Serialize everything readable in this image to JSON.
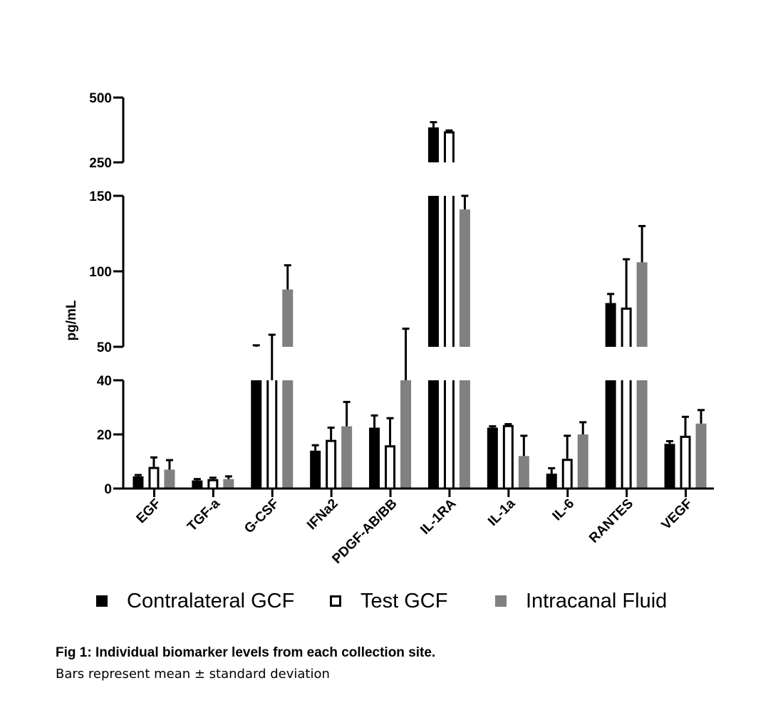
{
  "chart_data": {
    "type": "bar",
    "ylabel": "pg/mL",
    "categories": [
      "EGF",
      "TGF-a",
      "G-CSF",
      "IFNa2",
      "PDGF-AB/BB",
      "IL-1RA",
      "IL-1a",
      "IL-6",
      "RANTES",
      "VEGF"
    ],
    "series": [
      {
        "name": "Contralateral GCF",
        "color": "#000000",
        "fill": "solid",
        "values": [
          4.5,
          3,
          50,
          14,
          22.5,
          385,
          22.5,
          5.5,
          79,
          16.5
        ],
        "errors": [
          0.5,
          0.5,
          1,
          2,
          4.5,
          20,
          0.5,
          2,
          6,
          1
        ]
      },
      {
        "name": "Test GCF",
        "color": "#000000",
        "fill": "open",
        "values": [
          8,
          3.5,
          43,
          18,
          16,
          370,
          23.5,
          11,
          76,
          19.5
        ],
        "errors": [
          3.5,
          0.5,
          15,
          4.5,
          10,
          3,
          0.3,
          8.5,
          32,
          7
        ]
      },
      {
        "name": "Intracanal Fluid",
        "color": "#808080",
        "fill": "solid",
        "values": [
          7,
          3.5,
          88,
          23,
          47,
          141,
          12,
          20,
          106,
          24
        ],
        "errors": [
          3.5,
          1,
          16,
          9,
          15,
          10,
          7.5,
          4.5,
          24,
          5
        ]
      }
    ],
    "axis_segments": [
      {
        "range": [
          0,
          40
        ],
        "ticks": [
          "0",
          "20",
          "40"
        ]
      },
      {
        "range": [
          50,
          150
        ],
        "ticks": [
          "50",
          "100",
          "150"
        ]
      },
      {
        "range": [
          250,
          500
        ],
        "ticks": [
          "250",
          "500"
        ]
      }
    ],
    "legend_position": "bottom"
  },
  "caption": {
    "title": "Fig 1: Individual biomarker levels from each collection site.",
    "subtitle": "Bars represent mean ± standard deviation"
  }
}
